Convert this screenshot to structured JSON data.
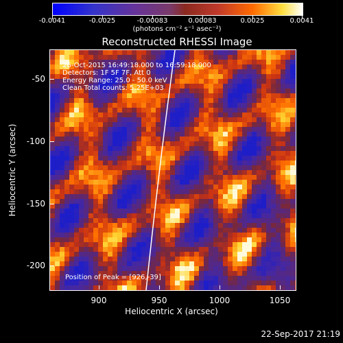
{
  "colorbar": {
    "ticks": [
      "-0.0041",
      "-0.0025",
      "-0.00083",
      "0.00083",
      "0.0025",
      "0.0041"
    ],
    "units": "(photons cm⁻² s⁻¹ asec⁻²)"
  },
  "title": "Reconstructed RHESSI Image",
  "annotations": {
    "time": "26-Oct-2015 16:49:18.000 to 16:59:18.000",
    "detectors": "Detectors: 1F 5F 7F, Att 0",
    "energy": "Energy Range: 25.0 - 50.0 keV",
    "clean": "Clean     Total counts: 5.25E+03",
    "peak": "Position of Peak = [926,-39]"
  },
  "axes": {
    "xlabel": "Heliocentric X (arcsec)",
    "ylabel": "Heliocentric Y (arcsec)",
    "xticks": [
      "900",
      "950",
      "1000",
      "1050"
    ],
    "yticks": [
      "-50",
      "-100",
      "-150",
      "-200"
    ]
  },
  "footer": "22-Sep-2017 21:19",
  "colors": {
    "background": "#000000",
    "frame": "#ffffff"
  }
}
